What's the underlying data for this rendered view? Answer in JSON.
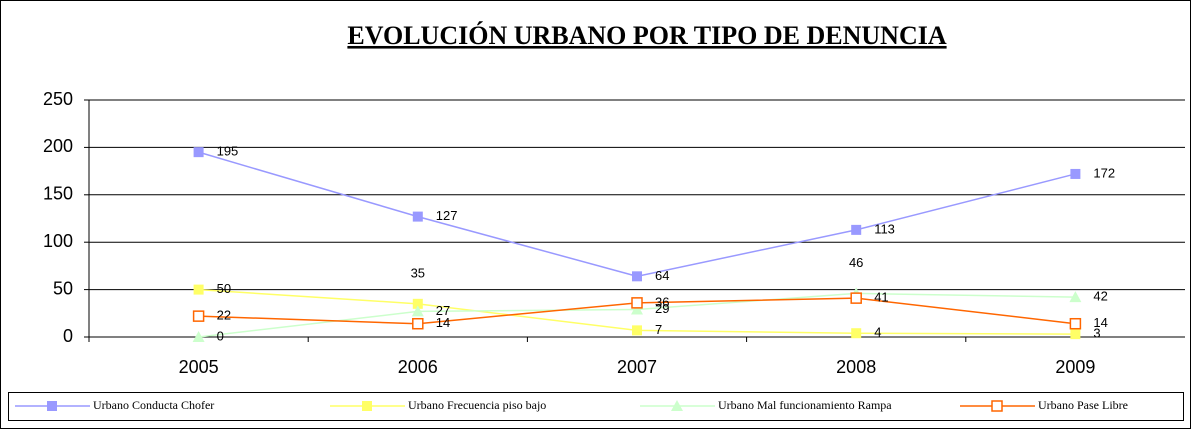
{
  "chart_data": {
    "type": "line",
    "title": "EVOLUCIÓN URBANO POR TIPO DE DENUNCIA",
    "categories": [
      "2005",
      "2006",
      "2007",
      "2008",
      "2009"
    ],
    "series": [
      {
        "name": "Urbano Conducta Chofer",
        "color": "#9999ff",
        "marker": "square",
        "values": [
          195,
          127,
          64,
          113,
          172
        ]
      },
      {
        "name": "Urbano Frecuencia piso bajo",
        "color": "#ffff66",
        "marker": "square",
        "values": [
          50,
          35,
          7,
          4,
          3
        ]
      },
      {
        "name": "Urbano Mal funcionamiento Rampa",
        "color": "#ccffcc",
        "marker": "triangle",
        "values": [
          0,
          27,
          29,
          46,
          42
        ]
      },
      {
        "name": "Urbano Pase Libre",
        "color": "#ff6600",
        "marker": "hollow-square",
        "values": [
          22,
          14,
          36,
          41,
          14
        ]
      }
    ],
    "ylim": [
      0,
      250
    ],
    "yticks": [
      0,
      50,
      100,
      150,
      200,
      250
    ],
    "grid": true,
    "legend": "bottom"
  }
}
